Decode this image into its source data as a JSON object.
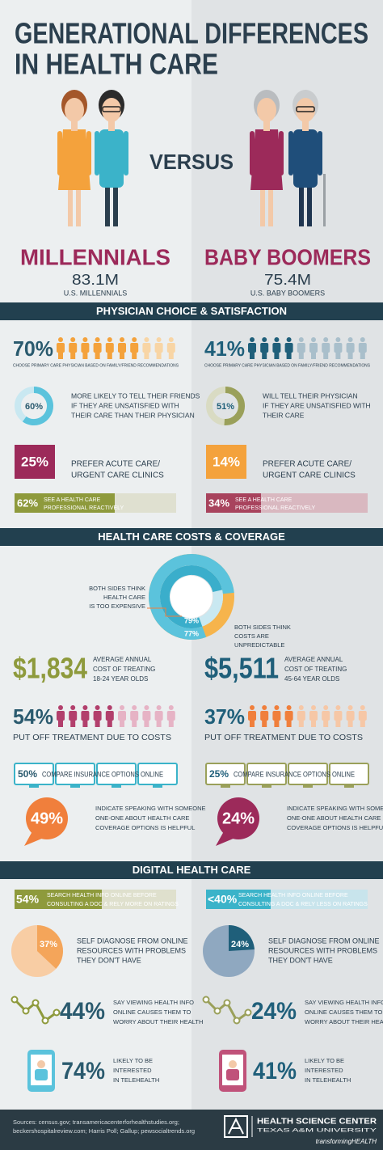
{
  "header": {
    "title_lines": [
      "GENERATIONAL DIFFERENCES",
      "IN HEALTH CARE"
    ],
    "versus": "VERSUS"
  },
  "generations": [
    {
      "name": "MILLENNIALS",
      "population": "83.1M",
      "population_label": "U.S. MILLENNIALS"
    },
    {
      "name": "BABY BOOMERS",
      "population": "75.4M",
      "population_label": "U.S. BABY BOOMERS"
    }
  ],
  "physician": {
    "title": "PHYSICIAN CHOICE & SATISFACTION",
    "columns": [
      {
        "choose": "70%",
        "choose_caption": "CHOOSE PRIMARY CARE PHYSICIAN BASED ON FAMILY/FRIEND RECOMMENDATIONS",
        "tell": "60%",
        "tell_lines": [
          "MORE LIKELY TO TELL THEIR FRIENDS",
          "IF THEY ARE UNSATISFIED WITH",
          "THEIR CARE THAN THEIR PHYSICIAN"
        ],
        "acute": "25%",
        "acute_lines": [
          "PREFER ACUTE CARE/",
          "URGENT CARE CLINICS"
        ],
        "reactive": "62%",
        "reactive_lines": [
          "SEE A HEALTH CARE",
          "PROFESSIONAL REACTIVELY"
        ]
      },
      {
        "choose": "41%",
        "choose_caption": "CHOOSE PRIMARY CARE PHYSICIAN BASED ON FAMILY/FRIEND RECOMMENDATIONS",
        "tell": "51%",
        "tell_lines": [
          "WILL TELL THEIR PHYSICIAN",
          "IF THEY ARE UNSATISFIED WITH",
          "THEIR CARE"
        ],
        "acute": "14%",
        "acute_lines": [
          "PREFER ACUTE CARE/",
          "URGENT CARE CLINICS"
        ],
        "reactive": "34%",
        "reactive_lines": [
          "SEE A HEALTH CARE",
          "PROFESSIONAL REACTIVELY"
        ]
      }
    ]
  },
  "costs": {
    "title": "HEALTH CARE COSTS & COVERAGE",
    "expensive": "79%",
    "expensive_lines": [
      "BOTH SIDES THINK",
      "HEALTH CARE",
      "IS TOO EXPENSIVE"
    ],
    "unpredictable": "77%",
    "unpredictable_lines": [
      "BOTH SIDES THINK",
      "COSTS ARE",
      "UNPREDICTABLE"
    ],
    "columns": [
      {
        "cost": "$1,834",
        "cost_lines": [
          "AVERAGE ANNUAL",
          "COST OF TREATING",
          "18-24 YEAR OLDS"
        ],
        "put_off": "54%",
        "put_off_caption": "PUT OFF TREATMENT DUE TO COSTS",
        "compare": "50%",
        "compare_caption": "COMPARE INSURANCE OPTIONS ONLINE",
        "speak": "49%",
        "speak_lines": [
          "INDICATE SPEAKING WITH SOMEONE",
          "ONE-ONE ABOUT HEALTH CARE",
          "COVERAGE OPTIONS IS HELPFUL"
        ]
      },
      {
        "cost": "$5,511",
        "cost_lines": [
          "AVERAGE ANNUAL",
          "COST OF TREATING",
          "45-64 YEAR OLDS"
        ],
        "put_off": "37%",
        "put_off_caption": "PUT OFF TREATMENT DUE TO COSTS",
        "compare": "25%",
        "compare_caption": "COMPARE INSURANCE OPTIONS ONLINE",
        "speak": "24%",
        "speak_lines": [
          "INDICATE SPEAKING WITH SOMEONE",
          "ONE-ONE ABOUT HEALTH CARE",
          "COVERAGE OPTIONS IS HELPFUL"
        ]
      }
    ]
  },
  "digital": {
    "title": "DIGITAL HEALTH CARE",
    "columns": [
      {
        "search": "54%",
        "search_lines": [
          "SEARCH HEALTH INFO ONLINE BEFORE",
          "CONSULTING A DOC & RELY MORE ON RATINGS"
        ],
        "self": "37%",
        "self_lines": [
          "SELF DIAGNOSE FROM ONLINE",
          "RESOURCES WITH PROBLEMS",
          "THEY DON'T HAVE"
        ],
        "worry": "44%",
        "worry_lines": [
          "SAY VIEWING HEALTH INFO",
          "ONLINE CAUSES THEM TO",
          "WORRY ABOUT THEIR HEALTH"
        ],
        "tele": "74%",
        "tele_lines": [
          "LIKELY TO BE",
          "INTERESTED",
          "IN TELEHEALTH"
        ]
      },
      {
        "search": "<40%",
        "search_lines": [
          "SEARCH HEALTH INFO ONLINE BEFORE",
          "CONSULTING A DOC & RELY LESS ON RATINGS"
        ],
        "self": "24%",
        "self_lines": [
          "SELF DIAGNOSE FROM ONLINE",
          "RESOURCES WITH PROBLEMS",
          "THEY DON'T HAVE"
        ],
        "worry": "24%",
        "worry_lines": [
          "SAY VIEWING HEALTH INFO",
          "ONLINE CAUSES THEM TO",
          "WORRY ABOUT THEIR HEALTH"
        ],
        "tele": "41%",
        "tele_lines": [
          "LIKELY TO BE",
          "INTERESTED",
          "IN TELEHEALTH"
        ]
      }
    ]
  },
  "footer": {
    "sources_lines": [
      "Sources: census.gov; transamericacenterforhealthstudies.org;",
      "beckershospitalreview.com; Harris Poll; Gallup; pewsocialtrends.org"
    ],
    "org": "HEALTH SCIENCE CENTER",
    "university": "TEXAS A&M UNIVERSITY",
    "tagline": "transformingHEALTH"
  }
}
